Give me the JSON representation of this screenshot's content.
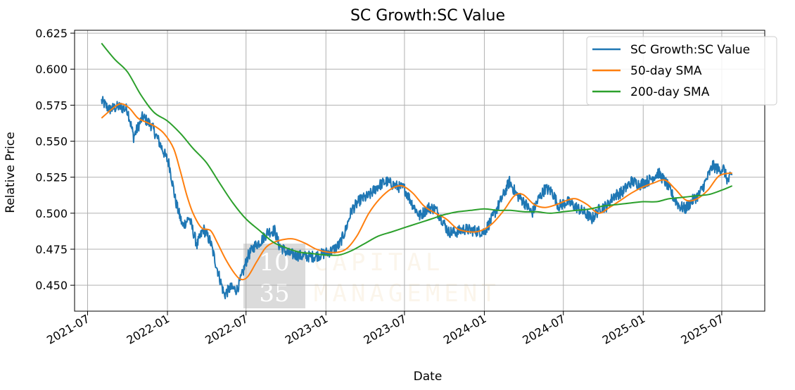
{
  "chart_data": {
    "type": "line",
    "title": "SC Growth:SC Value",
    "xlabel": "Date",
    "ylabel": "Relative Price",
    "xlim": [
      "2021-06-01",
      "2025-10-08"
    ],
    "ylim": [
      0.432,
      0.627
    ],
    "x_ticks": [
      "2021-07",
      "2022-01",
      "2022-07",
      "2023-01",
      "2023-07",
      "2024-01",
      "2024-07",
      "2025-01",
      "2025-07"
    ],
    "y_ticks": [
      0.45,
      0.475,
      0.5,
      0.525,
      0.55,
      0.575,
      0.6,
      0.625
    ],
    "grid": true,
    "legend": {
      "placement": "top-right"
    },
    "watermark": {
      "numerals": [
        "10",
        "35"
      ],
      "words": [
        "CAPITAL",
        "MANAGEMENT"
      ]
    },
    "series": [
      {
        "name": "SC Growth:SC Value",
        "color": "#1f77b4",
        "line_width": 2,
        "noise": 0.004,
        "points": [
          [
            "2021-08-02",
            0.578
          ],
          [
            "2021-08-20",
            0.572
          ],
          [
            "2021-09-10",
            0.574
          ],
          [
            "2021-10-01",
            0.572
          ],
          [
            "2021-10-15",
            0.553
          ],
          [
            "2021-11-05",
            0.567
          ],
          [
            "2021-11-25",
            0.561
          ],
          [
            "2021-12-15",
            0.548
          ],
          [
            "2022-01-05",
            0.534
          ],
          [
            "2022-01-20",
            0.508
          ],
          [
            "2022-02-05",
            0.491
          ],
          [
            "2022-02-20",
            0.497
          ],
          [
            "2022-03-10",
            0.478
          ],
          [
            "2022-03-25",
            0.489
          ],
          [
            "2022-04-10",
            0.48
          ],
          [
            "2022-04-25",
            0.462
          ],
          [
            "2022-05-12",
            0.443
          ],
          [
            "2022-05-25",
            0.448
          ],
          [
            "2022-06-10",
            0.447
          ],
          [
            "2022-06-20",
            0.455
          ],
          [
            "2022-07-05",
            0.47
          ],
          [
            "2022-07-20",
            0.477
          ],
          [
            "2022-08-05",
            0.481
          ],
          [
            "2022-08-20",
            0.487
          ],
          [
            "2022-09-05",
            0.488
          ],
          [
            "2022-09-15",
            0.478
          ],
          [
            "2022-10-05",
            0.472
          ],
          [
            "2022-10-25",
            0.471
          ],
          [
            "2022-11-10",
            0.47
          ],
          [
            "2022-12-05",
            0.47
          ],
          [
            "2022-12-28",
            0.472
          ],
          [
            "2023-01-15",
            0.474
          ],
          [
            "2023-02-01",
            0.478
          ],
          [
            "2023-02-15",
            0.488
          ],
          [
            "2023-03-01",
            0.502
          ],
          [
            "2023-03-20",
            0.509
          ],
          [
            "2023-04-10",
            0.512
          ],
          [
            "2023-05-01",
            0.519
          ],
          [
            "2023-05-20",
            0.522
          ],
          [
            "2023-06-10",
            0.519
          ],
          [
            "2023-07-01",
            0.517
          ],
          [
            "2023-07-20",
            0.506
          ],
          [
            "2023-08-05",
            0.498
          ],
          [
            "2023-08-25",
            0.504
          ],
          [
            "2023-09-10",
            0.503
          ],
          [
            "2023-09-25",
            0.496
          ],
          [
            "2023-10-10",
            0.487
          ],
          [
            "2023-10-30",
            0.487
          ],
          [
            "2023-11-15",
            0.489
          ],
          [
            "2023-12-05",
            0.488
          ],
          [
            "2024-01-01",
            0.487
          ],
          [
            "2024-01-20",
            0.497
          ],
          [
            "2024-02-10",
            0.51
          ],
          [
            "2024-02-28",
            0.522
          ],
          [
            "2024-03-15",
            0.513
          ],
          [
            "2024-04-01",
            0.508
          ],
          [
            "2024-04-20",
            0.5
          ],
          [
            "2024-05-05",
            0.51
          ],
          [
            "2024-05-20",
            0.517
          ],
          [
            "2024-06-05",
            0.515
          ],
          [
            "2024-06-20",
            0.505
          ],
          [
            "2024-07-10",
            0.508
          ],
          [
            "2024-08-01",
            0.504
          ],
          [
            "2024-08-20",
            0.5
          ],
          [
            "2024-09-05",
            0.496
          ],
          [
            "2024-09-25",
            0.504
          ],
          [
            "2024-10-10",
            0.505
          ],
          [
            "2024-10-25",
            0.512
          ],
          [
            "2024-11-15",
            0.515
          ],
          [
            "2024-12-05",
            0.522
          ],
          [
            "2024-12-25",
            0.52
          ],
          [
            "2025-01-15",
            0.523
          ],
          [
            "2025-02-05",
            0.528
          ],
          [
            "2025-02-25",
            0.52
          ],
          [
            "2025-03-10",
            0.512
          ],
          [
            "2025-03-25",
            0.505
          ],
          [
            "2025-04-08",
            0.503
          ],
          [
            "2025-04-25",
            0.509
          ],
          [
            "2025-05-10",
            0.513
          ],
          [
            "2025-05-25",
            0.522
          ],
          [
            "2025-06-10",
            0.533
          ],
          [
            "2025-06-25",
            0.53
          ],
          [
            "2025-07-05",
            0.531
          ],
          [
            "2025-07-15",
            0.522
          ],
          [
            "2025-07-25",
            0.527
          ]
        ]
      },
      {
        "name": "50-day SMA",
        "color": "#ff7f0e",
        "line_width": 2,
        "noise": 0,
        "points": [
          [
            "2021-08-02",
            0.566
          ],
          [
            "2021-08-25",
            0.572
          ],
          [
            "2021-09-15",
            0.576
          ],
          [
            "2021-10-05",
            0.573
          ],
          [
            "2021-10-25",
            0.566
          ],
          [
            "2021-11-15",
            0.563
          ],
          [
            "2021-12-05",
            0.56
          ],
          [
            "2021-12-25",
            0.555
          ],
          [
            "2022-01-15",
            0.545
          ],
          [
            "2022-01-30",
            0.53
          ],
          [
            "2022-02-15",
            0.512
          ],
          [
            "2022-03-01",
            0.5
          ],
          [
            "2022-03-20",
            0.49
          ],
          [
            "2022-04-10",
            0.488
          ],
          [
            "2022-04-25",
            0.48
          ],
          [
            "2022-05-15",
            0.468
          ],
          [
            "2022-06-05",
            0.458
          ],
          [
            "2022-06-20",
            0.454
          ],
          [
            "2022-07-05",
            0.456
          ],
          [
            "2022-07-25",
            0.466
          ],
          [
            "2022-08-15",
            0.476
          ],
          [
            "2022-09-05",
            0.48
          ],
          [
            "2022-09-30",
            0.482
          ],
          [
            "2022-10-20",
            0.482
          ],
          [
            "2022-11-15",
            0.479
          ],
          [
            "2022-12-10",
            0.475
          ],
          [
            "2023-01-05",
            0.473
          ],
          [
            "2023-01-30",
            0.473
          ],
          [
            "2023-02-20",
            0.476
          ],
          [
            "2023-03-15",
            0.485
          ],
          [
            "2023-04-10",
            0.5
          ],
          [
            "2023-05-05",
            0.51
          ],
          [
            "2023-06-01",
            0.517
          ],
          [
            "2023-06-25",
            0.519
          ],
          [
            "2023-07-20",
            0.514
          ],
          [
            "2023-08-15",
            0.505
          ],
          [
            "2023-09-10",
            0.5
          ],
          [
            "2023-10-05",
            0.496
          ],
          [
            "2023-11-01",
            0.489
          ],
          [
            "2023-12-01",
            0.487
          ],
          [
            "2023-12-25",
            0.488
          ],
          [
            "2024-01-20",
            0.493
          ],
          [
            "2024-02-15",
            0.502
          ],
          [
            "2024-03-10",
            0.512
          ],
          [
            "2024-03-30",
            0.513
          ],
          [
            "2024-04-25",
            0.506
          ],
          [
            "2024-05-20",
            0.504
          ],
          [
            "2024-06-15",
            0.506
          ],
          [
            "2024-07-10",
            0.509
          ],
          [
            "2024-07-30",
            0.51
          ],
          [
            "2024-08-25",
            0.506
          ],
          [
            "2024-09-20",
            0.5
          ],
          [
            "2024-10-15",
            0.504
          ],
          [
            "2024-11-10",
            0.509
          ],
          [
            "2024-12-05",
            0.514
          ],
          [
            "2024-12-30",
            0.518
          ],
          [
            "2025-01-25",
            0.521
          ],
          [
            "2025-02-20",
            0.523
          ],
          [
            "2025-03-15",
            0.517
          ],
          [
            "2025-04-10",
            0.509
          ],
          [
            "2025-05-05",
            0.51
          ],
          [
            "2025-05-30",
            0.516
          ],
          [
            "2025-06-25",
            0.526
          ],
          [
            "2025-07-25",
            0.528
          ]
        ]
      },
      {
        "name": "200-day SMA",
        "color": "#2ca02c",
        "line_width": 2,
        "noise": 0,
        "points": [
          [
            "2021-08-02",
            0.618
          ],
          [
            "2021-09-01",
            0.607
          ],
          [
            "2021-10-01",
            0.598
          ],
          [
            "2021-11-01",
            0.582
          ],
          [
            "2021-12-01",
            0.57
          ],
          [
            "2022-01-01",
            0.564
          ],
          [
            "2022-02-01",
            0.555
          ],
          [
            "2022-03-01",
            0.545
          ],
          [
            "2022-04-01",
            0.535
          ],
          [
            "2022-05-01",
            0.521
          ],
          [
            "2022-06-01",
            0.507
          ],
          [
            "2022-07-01",
            0.496
          ],
          [
            "2022-08-01",
            0.488
          ],
          [
            "2022-09-01",
            0.48
          ],
          [
            "2022-10-01",
            0.476
          ],
          [
            "2022-11-01",
            0.473
          ],
          [
            "2022-12-01",
            0.472
          ],
          [
            "2023-01-01",
            0.471
          ],
          [
            "2023-02-01",
            0.471
          ],
          [
            "2023-03-01",
            0.474
          ],
          [
            "2023-04-01",
            0.479
          ],
          [
            "2023-05-01",
            0.484
          ],
          [
            "2023-06-01",
            0.487
          ],
          [
            "2023-07-01",
            0.49
          ],
          [
            "2023-08-01",
            0.493
          ],
          [
            "2023-09-01",
            0.496
          ],
          [
            "2023-10-01",
            0.499
          ],
          [
            "2023-11-01",
            0.501
          ],
          [
            "2023-12-01",
            0.502
          ],
          [
            "2024-01-01",
            0.503
          ],
          [
            "2024-02-01",
            0.502
          ],
          [
            "2024-03-01",
            0.502
          ],
          [
            "2024-04-01",
            0.501
          ],
          [
            "2024-05-01",
            0.501
          ],
          [
            "2024-06-01",
            0.5
          ],
          [
            "2024-07-01",
            0.501
          ],
          [
            "2024-08-01",
            0.502
          ],
          [
            "2024-09-01",
            0.503
          ],
          [
            "2024-10-01",
            0.505
          ],
          [
            "2024-11-01",
            0.506
          ],
          [
            "2024-12-01",
            0.507
          ],
          [
            "2025-01-01",
            0.508
          ],
          [
            "2025-02-01",
            0.508
          ],
          [
            "2025-03-01",
            0.51
          ],
          [
            "2025-04-01",
            0.511
          ],
          [
            "2025-05-01",
            0.512
          ],
          [
            "2025-06-01",
            0.513
          ],
          [
            "2025-07-01",
            0.516
          ],
          [
            "2025-07-25",
            0.519
          ]
        ]
      }
    ]
  }
}
